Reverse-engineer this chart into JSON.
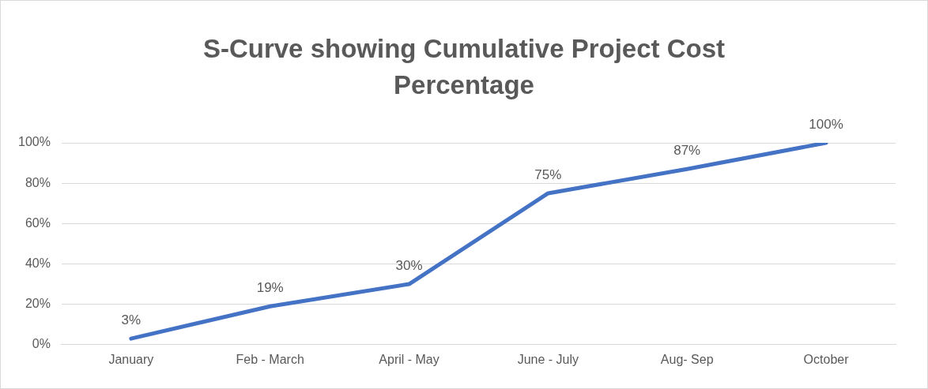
{
  "chart_data": {
    "type": "line",
    "title": "S-Curve showing Cumulative Project Cost Percentage",
    "categories": [
      "January",
      "Feb - March",
      "April - May",
      "June - July",
      "Aug- Sep",
      "October"
    ],
    "series": [
      {
        "color": "#4472c4",
        "values": [
          3,
          19,
          30,
          75,
          87,
          100
        ],
        "value_labels": [
          "3%",
          "19%",
          "30%",
          "75%",
          "87%",
          "100%"
        ]
      }
    ],
    "ylim": [
      0,
      100
    ],
    "yticks": [
      {
        "value": 0,
        "label": "0%"
      },
      {
        "value": 20,
        "label": "20%"
      },
      {
        "value": 40,
        "label": "40%"
      },
      {
        "value": 60,
        "label": "60%"
      },
      {
        "value": 80,
        "label": "80%"
      },
      {
        "value": 100,
        "label": "100%"
      }
    ],
    "grid": "y",
    "legend": false,
    "marker": "none",
    "line_style": "solid"
  }
}
